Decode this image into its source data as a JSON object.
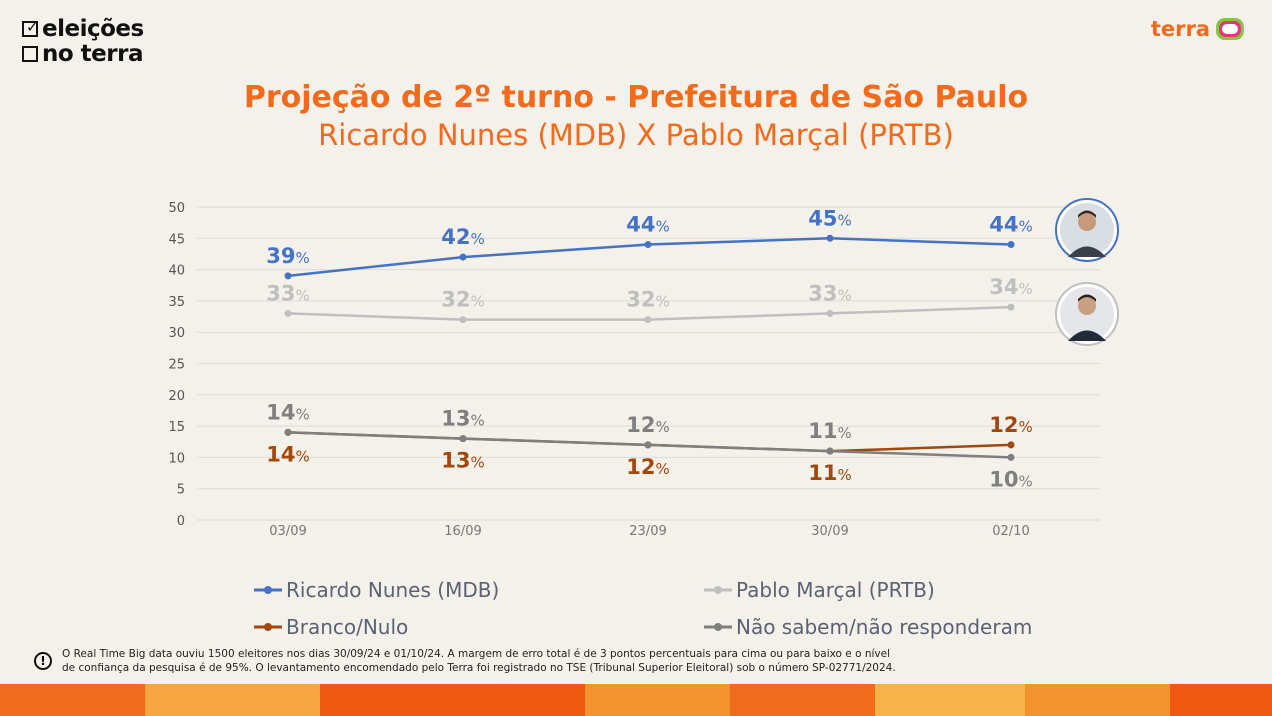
{
  "brand": {
    "left_line1": "eleições",
    "left_line2": "no terra",
    "right_text": "terra"
  },
  "header": {
    "title": "Projeção de 2º turno - Prefeitura de São Paulo",
    "subtitle": "Ricardo Nunes (MDB) X Pablo Marçal (PRTB)"
  },
  "colors": {
    "accent": "#f26a1b",
    "nunes": "#4472c4",
    "marcal": "#bfbfbf",
    "branco": "#a0480e",
    "naosabem": "#7f7f7f"
  },
  "chart_data": {
    "type": "line",
    "title": "Projeção de 2º turno - Prefeitura de São Paulo",
    "subtitle": "Ricardo Nunes (MDB) X Pablo Marçal (PRTB)",
    "x": [
      "03/09",
      "16/09",
      "23/09",
      "30/09",
      "02/10"
    ],
    "ylim": [
      0,
      50
    ],
    "yticks": [
      0,
      5,
      10,
      15,
      20,
      25,
      30,
      35,
      40,
      45,
      50
    ],
    "grid": true,
    "legend_position": "bottom",
    "value_suffix": "%",
    "series": [
      {
        "name": "Ricardo Nunes (MDB)",
        "values": [
          39,
          42,
          44,
          45,
          44
        ],
        "color": "#4472c4",
        "label_position": "above"
      },
      {
        "name": "Pablo Marçal (PRTB)",
        "values": [
          33,
          32,
          32,
          33,
          34
        ],
        "color": "#bfbfbf",
        "label_position": "above"
      },
      {
        "name": "Branco/Nulo",
        "values": [
          14,
          13,
          12,
          11,
          12
        ],
        "color": "#a0480e",
        "label_position": [
          "below",
          "below",
          "below",
          "below",
          "above"
        ]
      },
      {
        "name": "Não sabem/não responderam",
        "values": [
          14,
          13,
          12,
          11,
          10
        ],
        "color": "#7f7f7f",
        "label_position": [
          "above",
          "above",
          "above",
          "above",
          "below"
        ]
      }
    ]
  },
  "footer": {
    "icon": "info-icon",
    "line1": "O Real Time Big data ouviu 1500 eleitores nos dias 30/09/24 e 01/10/24. A margem de erro total é de 3 pontos percentuais para cima ou para baixo e o nível",
    "line2": "de confiança da pesquisa é de 95%. O levantamento encomendado pelo Terra foi registrado no TSE (Tribunal Superior Eleitoral) sob o número SP-02771/2024."
  }
}
